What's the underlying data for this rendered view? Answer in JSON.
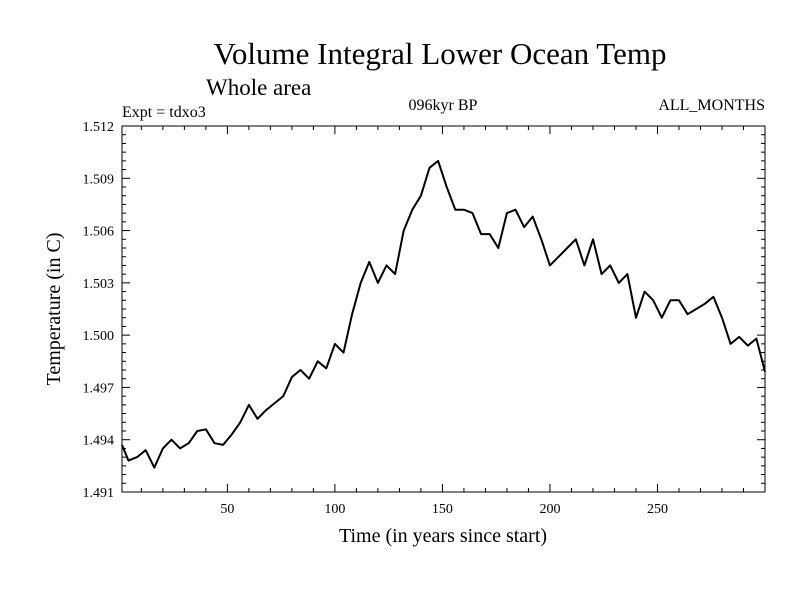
{
  "chart_data": {
    "type": "line",
    "title": "Volume Integral Lower Ocean Temp",
    "subtitle": "Whole area",
    "header_left": "Expt = tdxo3",
    "header_center": "096kyr BP",
    "header_right": "ALL_MONTHS",
    "xlabel": "Time (in years since start)",
    "ylabel": "Temperature (in C)",
    "xlim": [
      1,
      300
    ],
    "ylim": [
      1.491,
      1.512
    ],
    "xticks": [
      50,
      100,
      150,
      200,
      250
    ],
    "xtick_labels": [
      "50",
      "100",
      "150",
      "200",
      "250"
    ],
    "yticks": [
      1.491,
      1.494,
      1.497,
      1.5,
      1.503,
      1.506,
      1.509,
      1.512
    ],
    "ytick_labels": [
      "1.491",
      "1.494",
      "1.497",
      "1.500",
      "1.503",
      "1.506",
      "1.509",
      "1.512"
    ],
    "grid": false,
    "series": [
      {
        "name": "",
        "color": "#000000",
        "x": [
          1,
          4,
          8,
          12,
          16,
          20,
          24,
          28,
          32,
          36,
          40,
          44,
          48,
          52,
          56,
          60,
          64,
          68,
          72,
          76,
          80,
          84,
          88,
          92,
          96,
          100,
          104,
          108,
          112,
          116,
          120,
          124,
          128,
          132,
          136,
          140,
          144,
          148,
          152,
          156,
          160,
          164,
          168,
          172,
          176,
          180,
          184,
          188,
          192,
          196,
          200,
          204,
          208,
          212,
          216,
          220,
          224,
          228,
          232,
          236,
          240,
          244,
          248,
          252,
          256,
          260,
          264,
          268,
          272,
          276,
          280,
          284,
          288,
          292,
          296,
          300
        ],
        "y": [
          1.4937,
          1.4928,
          1.493,
          1.4934,
          1.4924,
          1.4935,
          1.494,
          1.4935,
          1.4938,
          1.4945,
          1.4946,
          1.4938,
          1.4937,
          1.4943,
          1.495,
          1.496,
          1.4952,
          1.4957,
          1.4961,
          1.4965,
          1.4976,
          1.498,
          1.4975,
          1.4985,
          1.4981,
          1.4995,
          1.499,
          1.5012,
          1.503,
          1.5042,
          1.503,
          1.504,
          1.5035,
          1.506,
          1.5072,
          1.508,
          1.5096,
          1.51,
          1.5085,
          1.5072,
          1.5072,
          1.507,
          1.5058,
          1.5058,
          1.505,
          1.507,
          1.5072,
          1.5062,
          1.5068,
          1.5055,
          1.504,
          1.5045,
          1.505,
          1.5055,
          1.504,
          1.5055,
          1.5035,
          1.504,
          1.503,
          1.5035,
          1.501,
          1.5025,
          1.502,
          1.501,
          1.502,
          1.502,
          1.5012,
          1.5015,
          1.5018,
          1.5022,
          1.501,
          1.4995,
          1.4999,
          1.4994,
          1.4998,
          1.4979
        ]
      }
    ]
  }
}
